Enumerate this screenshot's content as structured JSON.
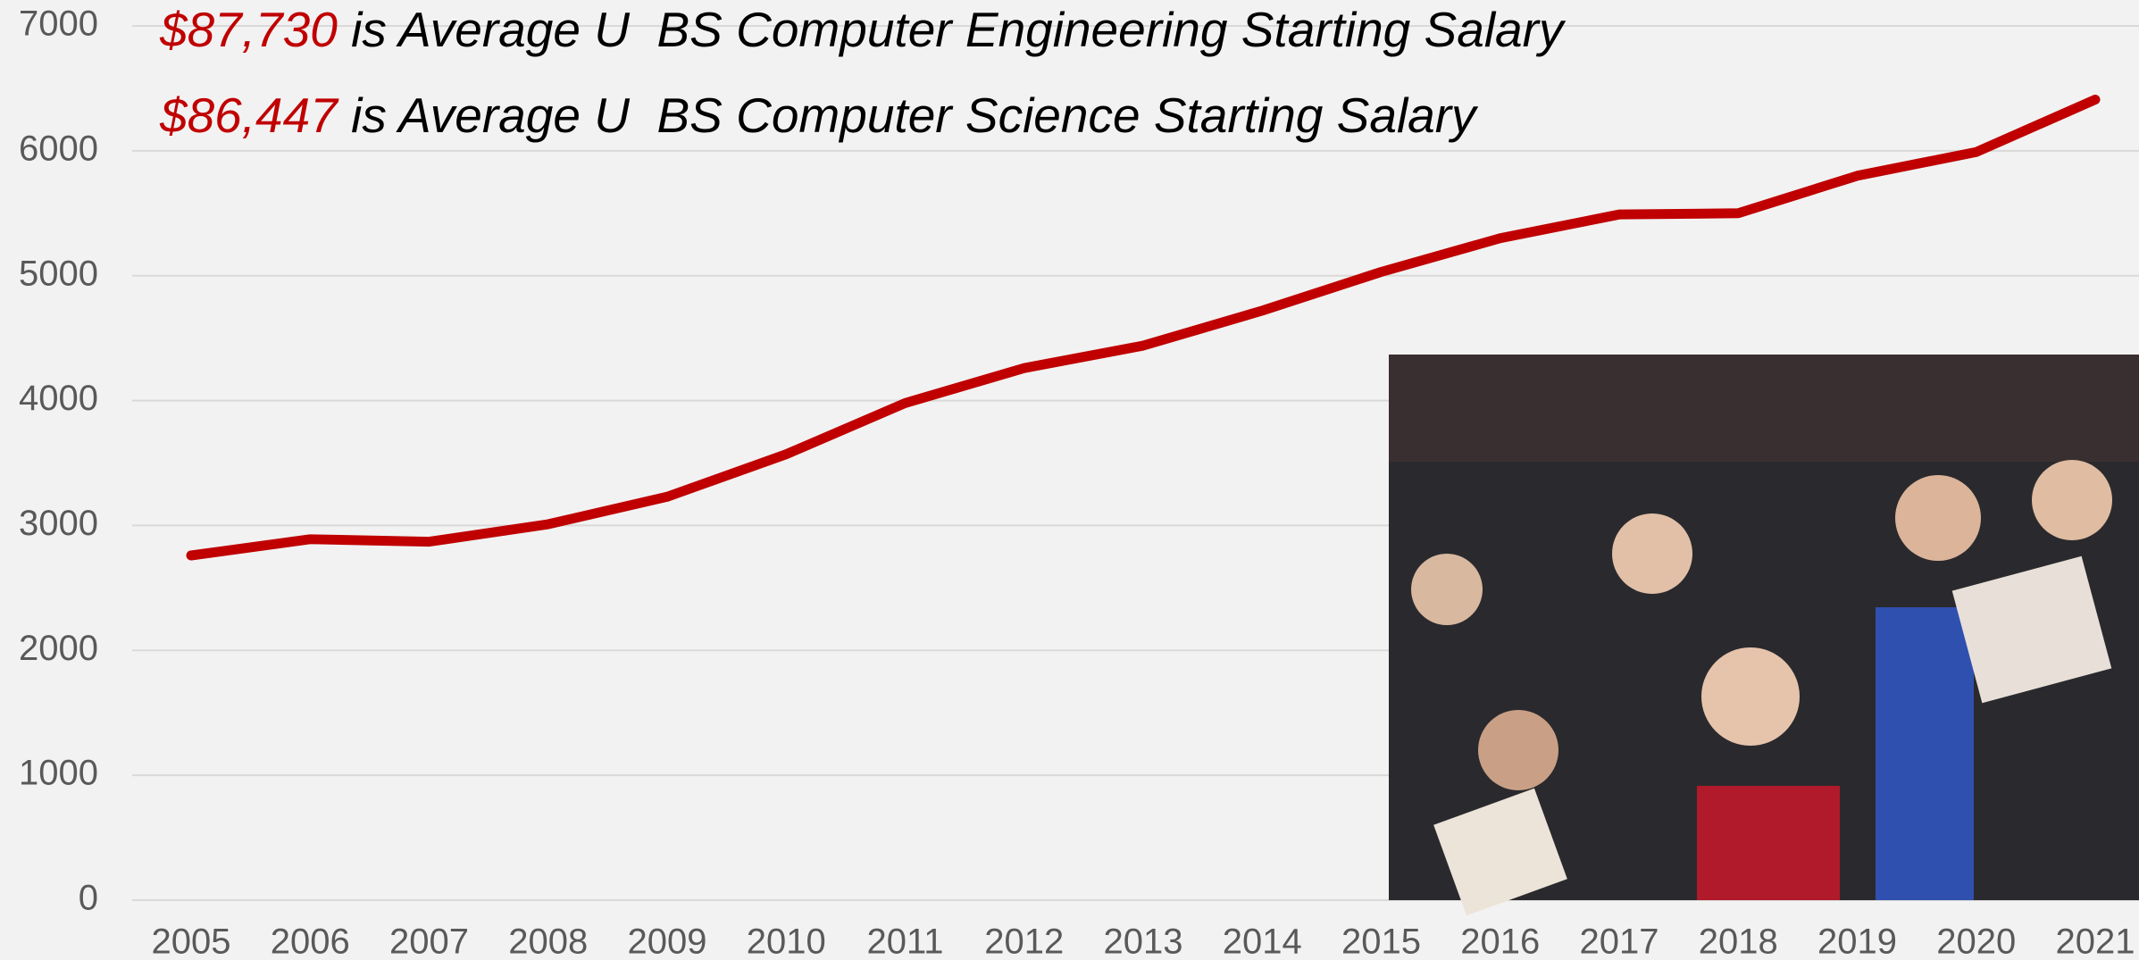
{
  "chart_data": {
    "type": "line",
    "annotations": [
      {
        "highlight": "$87,730",
        "text": "is Average U  BS Computer Engineering Starting Salary"
      },
      {
        "highlight": "$86,447",
        "text": "is Average U  BS Computer Science Starting Salary"
      }
    ],
    "categories": [
      "2005",
      "2006",
      "2007",
      "2008",
      "2009",
      "2010",
      "2011",
      "2012",
      "2013",
      "2014",
      "2015",
      "2016",
      "2017",
      "2018",
      "2019",
      "2020",
      "2021"
    ],
    "values": [
      2760,
      2890,
      2870,
      3010,
      3230,
      3570,
      3980,
      4260,
      4440,
      4720,
      5030,
      5300,
      5490,
      5500,
      5800,
      5990,
      6410
    ],
    "color": "#c00000",
    "ylim": [
      0,
      7000
    ],
    "yticks": [
      0,
      1000,
      2000,
      3000,
      4000,
      5000,
      6000,
      7000
    ],
    "grid": true
  }
}
